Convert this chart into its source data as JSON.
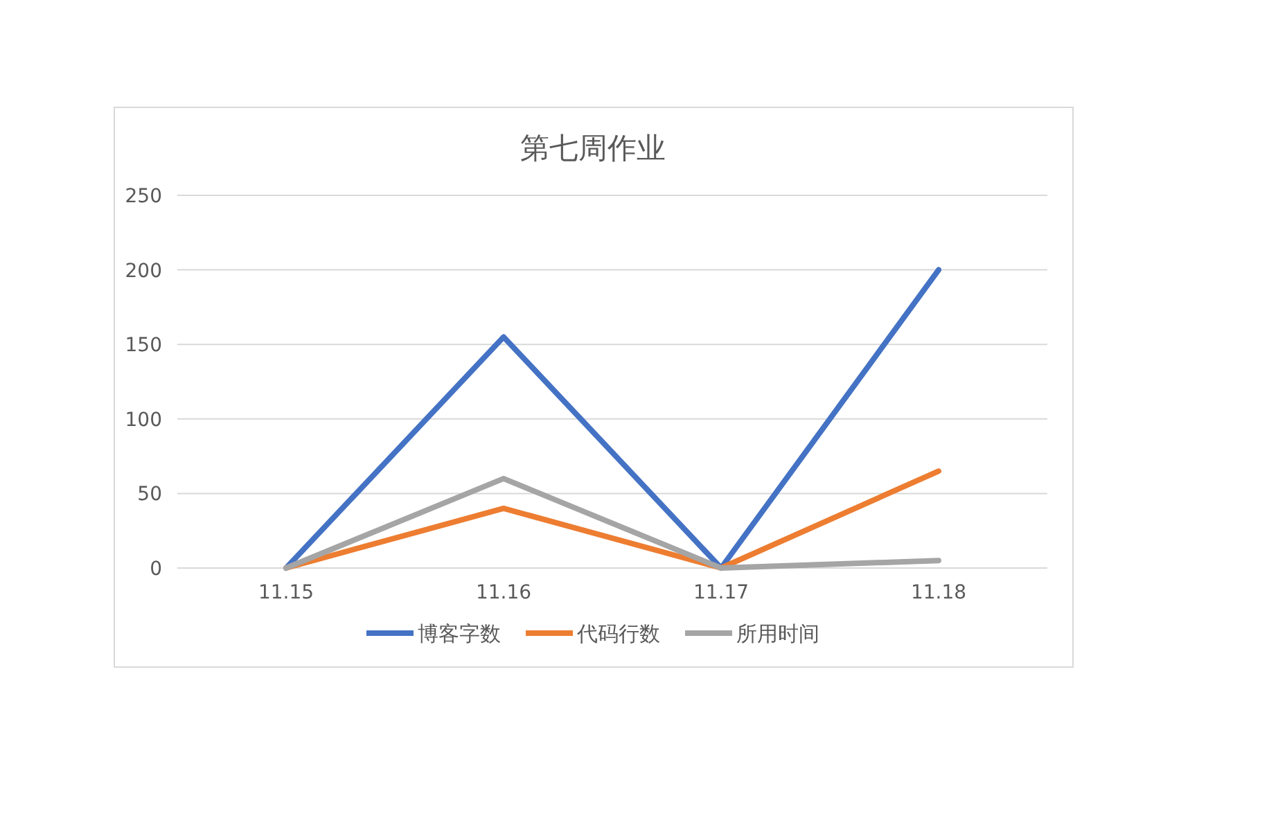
{
  "chart_data": {
    "type": "line",
    "title": "第七周作业",
    "categories": [
      "11.15",
      "11.16",
      "11.17",
      "11.18"
    ],
    "series": [
      {
        "name": "博客字数",
        "color": "#4472c4",
        "values": [
          0,
          155,
          0,
          200
        ]
      },
      {
        "name": "代码行数",
        "color": "#ed7d31",
        "values": [
          0,
          40,
          0,
          65
        ]
      },
      {
        "name": "所用时间",
        "color": "#a5a5a5",
        "values": [
          0,
          60,
          0,
          5
        ]
      }
    ],
    "ylim": [
      0,
      250
    ],
    "yticks": [
      0,
      50,
      100,
      150,
      200,
      250
    ],
    "grid": "y",
    "legend": "bottom",
    "marker": "none",
    "line_style": "solid"
  }
}
